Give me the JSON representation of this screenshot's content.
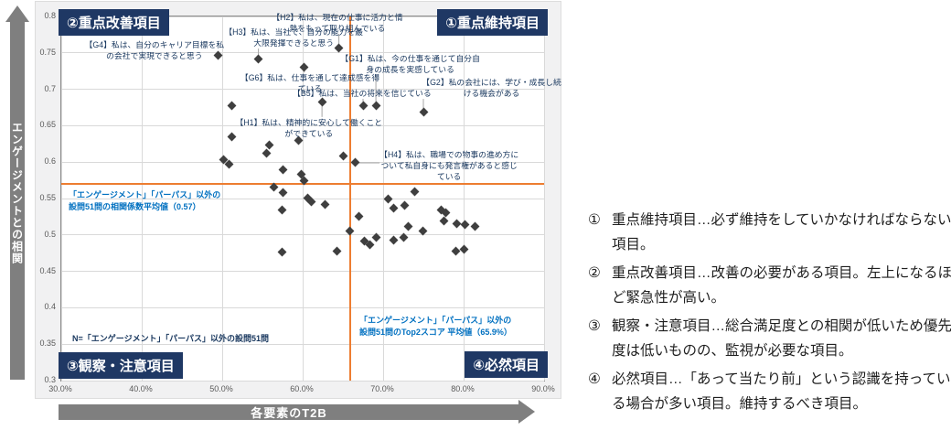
{
  "chart_data": {
    "type": "scatter",
    "title": "",
    "xlabel": "各要素のT2B",
    "ylabel": "エンゲージメントとの相関",
    "xlim": [
      30,
      90
    ],
    "ylim": [
      0.3,
      0.8
    ],
    "grid": true,
    "x_ticks": [
      [
        30,
        "30.0%"
      ],
      [
        40,
        "40.0%"
      ],
      [
        50,
        "50.0%"
      ],
      [
        60,
        "60.0%"
      ],
      [
        70,
        "70.0%"
      ],
      [
        80,
        "80.0%"
      ],
      [
        90,
        "90.0%"
      ]
    ],
    "y_ticks": [
      [
        0.8,
        "0.8"
      ],
      [
        0.75,
        "0.75"
      ],
      [
        0.7,
        "0.7"
      ],
      [
        0.65,
        "0.65"
      ],
      [
        0.6,
        "0.6"
      ],
      [
        0.55,
        "0.55"
      ],
      [
        0.5,
        "0.5"
      ],
      [
        0.45,
        "0.45"
      ],
      [
        0.4,
        "0.4"
      ],
      [
        0.35,
        "0.35"
      ],
      [
        0.3,
        "0.3"
      ]
    ],
    "reference_lines": {
      "x_value": 65.9,
      "y_value": 0.57,
      "color": "#ED7D31"
    },
    "marker": {
      "shape": "diamond",
      "color": "#3f3f3f"
    },
    "points": [
      [
        49.5,
        0.747
      ],
      [
        54.5,
        0.742
      ],
      [
        60.2,
        0.73
      ],
      [
        64.5,
        0.757
      ],
      [
        51.2,
        0.678
      ],
      [
        62.4,
        0.682
      ],
      [
        67.5,
        0.677
      ],
      [
        69.1,
        0.678
      ],
      [
        75.0,
        0.669
      ],
      [
        51.2,
        0.635
      ],
      [
        55.8,
        0.624
      ],
      [
        59.5,
        0.63
      ],
      [
        55.5,
        0.612
      ],
      [
        50.2,
        0.603
      ],
      [
        50.8,
        0.597
      ],
      [
        57.5,
        0.589
      ],
      [
        59.8,
        0.583
      ],
      [
        60.2,
        0.575
      ],
      [
        65.0,
        0.609
      ],
      [
        66.5,
        0.599
      ],
      [
        56.4,
        0.566
      ],
      [
        57.5,
        0.558
      ],
      [
        60.6,
        0.551
      ],
      [
        61.1,
        0.545
      ],
      [
        62.8,
        0.542
      ],
      [
        57.4,
        0.534
      ],
      [
        67.0,
        0.525
      ],
      [
        65.9,
        0.505
      ],
      [
        57.4,
        0.477
      ],
      [
        64.3,
        0.478
      ],
      [
        73.9,
        0.56
      ],
      [
        70.6,
        0.55
      ],
      [
        71.3,
        0.537
      ],
      [
        72.7,
        0.541
      ],
      [
        77.2,
        0.534
      ],
      [
        77.8,
        0.53
      ],
      [
        77.5,
        0.519
      ],
      [
        79.2,
        0.515
      ],
      [
        80.2,
        0.514
      ],
      [
        81.4,
        0.512
      ],
      [
        73.1,
        0.512
      ],
      [
        74.9,
        0.506
      ],
      [
        67.7,
        0.492
      ],
      [
        68.4,
        0.487
      ],
      [
        69.1,
        0.496
      ],
      [
        71.3,
        0.493
      ],
      [
        72.5,
        0.497
      ],
      [
        79.0,
        0.478
      ],
      [
        80.1,
        0.48
      ]
    ],
    "annotations": [
      {
        "id": "G4",
        "lines": [
          "【G4】私は、自分のキャリア目標を私",
          "の会社で実現できると思う"
        ],
        "label_x": 41.6,
        "label_y": 0.769,
        "point": [
          49.5,
          0.747
        ]
      },
      {
        "id": "H3",
        "lines": [
          "【H3】私は、当社で、自分の能力を最",
          "大限発揮できると思う"
        ],
        "label_x": 58.9,
        "label_y": 0.786,
        "point": [
          54.5,
          0.742
        ]
      },
      {
        "id": "H2",
        "lines": [
          "【H2】私は、現在の仕事に活力と情",
          "熱をもって取り組んでいる"
        ],
        "label_x": 64.3,
        "label_y": 0.806,
        "point": [
          64.5,
          0.757
        ]
      },
      {
        "id": "G6",
        "lines": [
          "【G6】私は、仕事を通して達成感を得",
          "ている"
        ],
        "label_x": 60.9,
        "label_y": 0.723,
        "point": [
          60.2,
          0.73
        ]
      },
      {
        "id": "B5",
        "lines": [
          "【B5】私は、当社の将来を信じている"
        ],
        "label_x": 67.4,
        "label_y": 0.702,
        "point": [
          67.5,
          0.677
        ]
      },
      {
        "id": "H1",
        "lines": [
          "【H1】私は、精神的に安心して働くこと",
          "ができている"
        ],
        "label_x": 60.8,
        "label_y": 0.662,
        "point": [
          62.4,
          0.682
        ]
      },
      {
        "id": "G1",
        "lines": [
          "【G1】私は、今の仕事を通じて自分自",
          "身の成長を実感している"
        ],
        "label_x": 73.4,
        "label_y": 0.75,
        "point": [
          69.1,
          0.678
        ]
      },
      {
        "id": "G2",
        "lines": [
          "【G2】私の会社には、学び・成長し続",
          "ける機会がある"
        ],
        "label_x": 83.5,
        "label_y": 0.717,
        "point": [
          75.0,
          0.669
        ]
      },
      {
        "id": "H4",
        "lines": [
          "【H4】私は、職場での物事の進め方に",
          "ついて私自身にも発言権があると感じ",
          "ている"
        ],
        "label_x": 78.2,
        "label_y": 0.618,
        "point": [
          66.5,
          0.599
        ]
      }
    ],
    "quadrant_labels": {
      "q1": "①重点維持項目",
      "q2": "②重点改善項目",
      "q3": "③観察・注意項目",
      "q4": "④必然項目"
    },
    "notes": {
      "correlation": {
        "lines": [
          "「エンゲージメント」「パーパス」以外の",
          "設問51問の相関係数平均値（0.57）"
        ]
      },
      "n": {
        "text": "N=「エンゲージメント」「パーパス」以外の設問51問"
      },
      "top2": {
        "lines": [
          "「エンゲージメント」「パーパス」以外の",
          "設問51問のTop2スコア 平均値（65.9%）"
        ]
      }
    },
    "colors": {
      "navy": "#1F3864",
      "orange": "#ED7D31",
      "grid": "#D9D9D9",
      "marker": "#3F3F3F",
      "arrow": "#7F7F7F",
      "blue_note": "#0070C0",
      "leader": "#A6A6A6"
    }
  },
  "panel": {
    "items": [
      {
        "num": "①",
        "text": "重点維持項目…必ず維持をしていかなければならない項目。"
      },
      {
        "num": "②",
        "text": "重点改善項目…改善の必要がある項目。左上になるほど緊急性が高い。"
      },
      {
        "num": "③",
        "text": "観察・注意項目…総合満足度との相関が低いため優先度は低いものの、監視が必要な項目。"
      },
      {
        "num": "④",
        "text": "必然項目…「あって当たり前」という認識を持っている場合が多い項目。維持するべき項目。"
      }
    ]
  }
}
